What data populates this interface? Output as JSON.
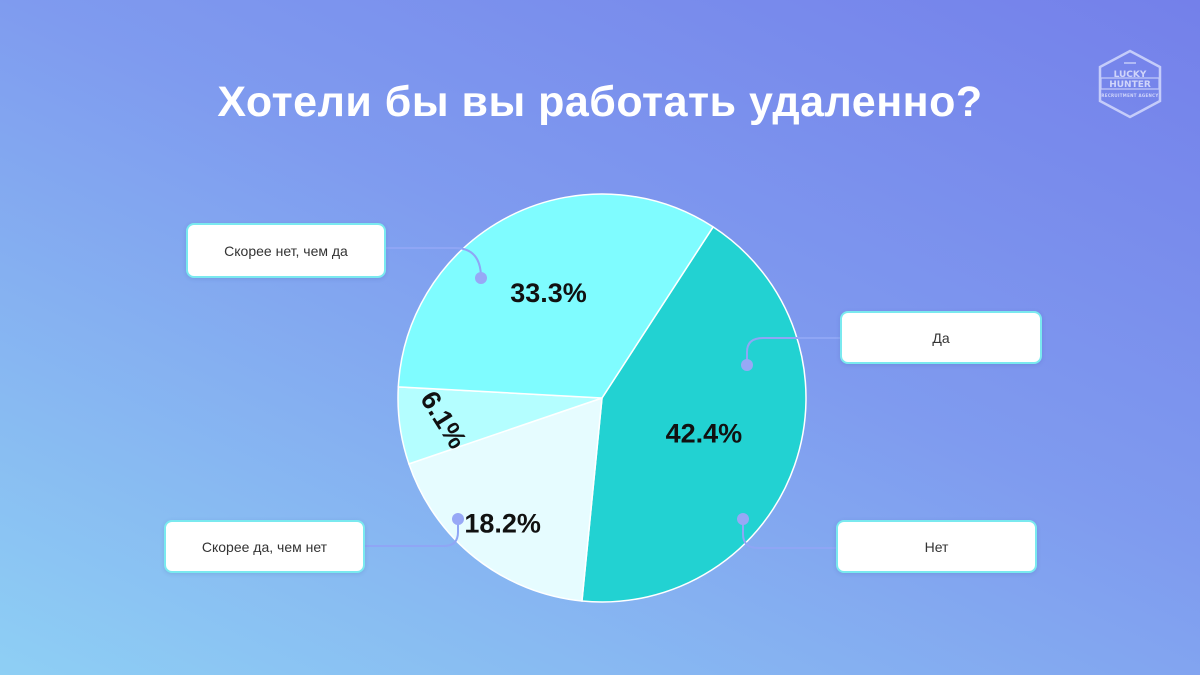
{
  "title": "Хотели бы вы работать удаленно?",
  "logo": {
    "line1": "LUCKY",
    "line2": "HUNTER",
    "line3": "RECRUITMENT AGENCY",
    "icon": "hexagon-badge-icon"
  },
  "colors": {
    "background_top": "#7480ea",
    "background_bottom": "#8ecff4",
    "slice_1": "#22d2d2",
    "slice_2": "#e6fcff",
    "slice_3": "#b4feff",
    "slice_4": "#7ffcff",
    "connector": "#8fa6f5"
  },
  "chart_data": {
    "type": "pie",
    "title": "Хотели бы вы работать удаленно?",
    "slices": [
      {
        "label": "Скорее нет, чем да",
        "value": 42.4,
        "display": "42.4%"
      },
      {
        "label": "Да",
        "value": 18.2,
        "display": "18.2%"
      },
      {
        "label": "Нет",
        "value": 6.1,
        "display": "6.1%"
      },
      {
        "label": "Скорее да, чем нет",
        "value": 33.3,
        "display": "33.3%"
      }
    ]
  }
}
